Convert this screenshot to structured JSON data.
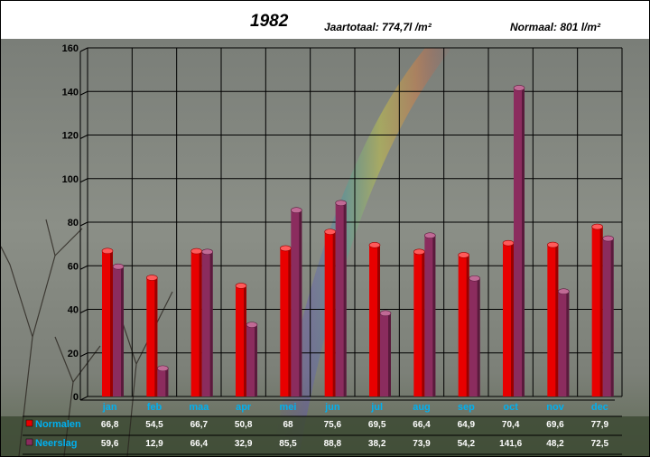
{
  "header": {
    "year": "1982",
    "total": "Jaartotaal: 774,7l /m²",
    "normal": "Normaal: 801 l/m²"
  },
  "colors": {
    "normalen": "#e80000",
    "normalen_top": "#ff5a5a",
    "normalen_side": "#9a0000",
    "neerslag": "#8b2c5e",
    "neerslag_top": "#c06a95",
    "neerslag_side": "#5a1a3c",
    "month_label": "#00b0f0",
    "value_label": "#ffffff",
    "grid": "#000000"
  },
  "chart_data": {
    "type": "bar",
    "categories": [
      "jan",
      "feb",
      "maa",
      "apr",
      "mei",
      "jun",
      "jul",
      "aug",
      "sep",
      "oct",
      "nov",
      "dec"
    ],
    "series": [
      {
        "name": "Normalen",
        "values": [
          66.8,
          54.5,
          66.7,
          50.8,
          68,
          75.6,
          69.5,
          66.4,
          64.9,
          70.4,
          69.6,
          77.9
        ],
        "labels": [
          "66,8",
          "54,5",
          "66,7",
          "50,8",
          "68",
          "75,6",
          "69,5",
          "66,4",
          "64,9",
          "70,4",
          "69,6",
          "77,9"
        ]
      },
      {
        "name": "Neerslag",
        "values": [
          59.6,
          12.9,
          66.4,
          32.9,
          85.5,
          88.8,
          38.2,
          73.9,
          54.2,
          141.6,
          48.2,
          72.5
        ],
        "labels": [
          "59,6",
          "12,9",
          "66,4",
          "32,9",
          "85,5",
          "88,8",
          "38,2",
          "73,9",
          "54,2",
          "141,6",
          "48,2",
          "72,5"
        ]
      }
    ],
    "yticks": [
      "0",
      "20",
      "40",
      "60",
      "80",
      "100",
      "120",
      "140",
      "160"
    ],
    "ylim": [
      0,
      160
    ],
    "grid": true,
    "legend": "bottom-left data table"
  }
}
